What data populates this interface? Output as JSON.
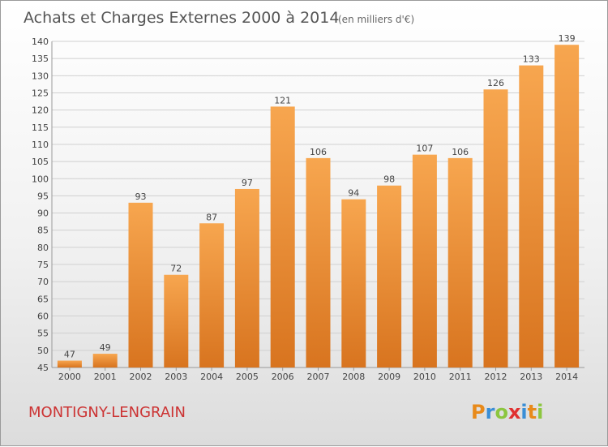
{
  "chart_data": {
    "type": "bar",
    "title": "Achats et Charges Externes 2000 à 2014",
    "unit": "(en milliers d'€)",
    "categories": [
      "2000",
      "2001",
      "2002",
      "2003",
      "2004",
      "2005",
      "2006",
      "2007",
      "2008",
      "2009",
      "2010",
      "2011",
      "2012",
      "2013",
      "2014"
    ],
    "values": [
      47,
      49,
      93,
      72,
      87,
      97,
      121,
      106,
      94,
      98,
      107,
      106,
      126,
      133,
      139
    ],
    "ylim": [
      45,
      140
    ],
    "yticks": [
      45,
      50,
      55,
      60,
      65,
      70,
      75,
      80,
      85,
      90,
      95,
      100,
      105,
      110,
      115,
      120,
      125,
      130,
      135,
      140
    ],
    "grid": true,
    "colors": {
      "bar_light": "#f7a64f",
      "bar_dark": "#d8741f",
      "grid": "#d0d0d0"
    }
  },
  "place_name": "MONTIGNY-LENGRAIN",
  "logo": {
    "letters": [
      "P",
      "r",
      "o",
      "x",
      "i",
      "t",
      "i"
    ],
    "colors": [
      "#e88a1a",
      "#3a8ed6",
      "#8cc63f",
      "#e03030",
      "#3a8ed6",
      "#e88a1a",
      "#8cc63f"
    ]
  }
}
